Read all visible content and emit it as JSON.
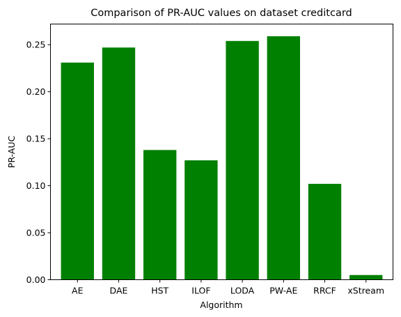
{
  "chart_data": {
    "type": "bar",
    "title": "Comparison of PR-AUC values on dataset creditcard",
    "xlabel": "Algorithm",
    "ylabel": "PR-AUC",
    "categories": [
      "AE",
      "DAE",
      "HST",
      "ILOF",
      "LODA",
      "PW-AE",
      "RRCF",
      "xStream"
    ],
    "values": [
      0.231,
      0.247,
      0.138,
      0.127,
      0.254,
      0.259,
      0.102,
      0.005
    ],
    "ylim": [
      0,
      0.272
    ],
    "yticks": [
      "0.00",
      "0.05",
      "0.10",
      "0.15",
      "0.20",
      "0.25"
    ],
    "bar_color": "#008000",
    "grid": false,
    "legend": "none"
  }
}
